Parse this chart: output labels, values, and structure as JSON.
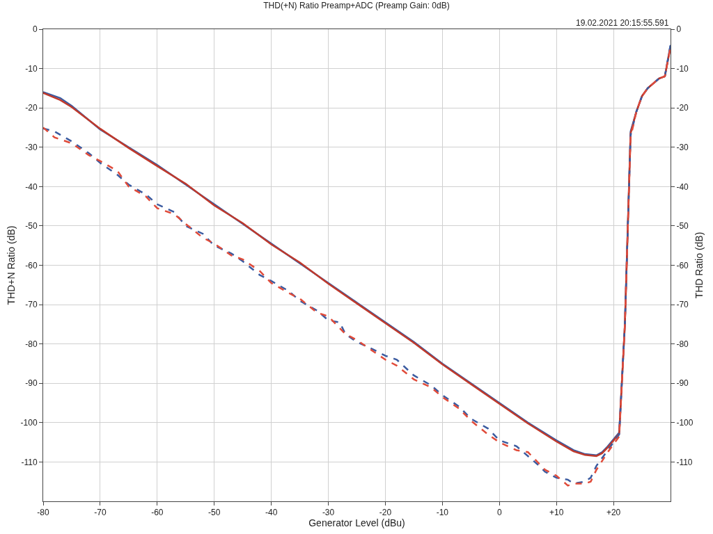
{
  "chart_data": {
    "type": "line",
    "title": "THD(+N) Ratio Preamp+ADC (Preamp Gain: 0dB)",
    "xlabel": "Generator Level (dBu)",
    "ylabel": "THD+N Ratio (dB)",
    "y2label": "THD Ratio (dB)",
    "annotations": [
      "19.02.2021 20:15:55.591"
    ],
    "series": [
      {
        "color": "#3b5ba0",
        "line_style": "solid",
        "x": [
          -80,
          -77,
          -75,
          -70,
          -65,
          -60,
          -55,
          -50,
          -45,
          -40,
          -35,
          -30,
          -25,
          -20,
          -15,
          -10,
          -5,
          0,
          5,
          10,
          13,
          15,
          17,
          18,
          19,
          21,
          22,
          23,
          24,
          25,
          26,
          28,
          29,
          30
        ],
        "values": [
          -16,
          -17.5,
          -19.5,
          -25.5,
          -30,
          -34.5,
          -39.5,
          -44.5,
          -49.5,
          -54.5,
          -59.5,
          -64.5,
          -69.5,
          -74.5,
          -79.5,
          -85,
          -90,
          -95,
          -100,
          -104.5,
          -107,
          -108,
          -108.3,
          -107.5,
          -106,
          -102.5,
          -75,
          -26,
          -21,
          -17,
          -15,
          -12.5,
          -12,
          -4
        ]
      },
      {
        "color": "#c0392b",
        "line_style": "solid",
        "x": [
          -80,
          -77,
          -75,
          -70,
          -65,
          -60,
          -55,
          -50,
          -45,
          -40,
          -35,
          -30,
          -25,
          -20,
          -15,
          -10,
          -5,
          0,
          5,
          10,
          13,
          15,
          17,
          18,
          19,
          21,
          22,
          23,
          24,
          25,
          26,
          28,
          29,
          30
        ],
        "values": [
          -16.2,
          -18,
          -19.8,
          -25.3,
          -30.2,
          -34.8,
          -39.3,
          -44.8,
          -49.3,
          -54.7,
          -59.3,
          -64.7,
          -69.7,
          -74.7,
          -79.7,
          -85.2,
          -90.2,
          -95.2,
          -100.2,
          -104.8,
          -107.3,
          -108.2,
          -108.5,
          -107.8,
          -106.3,
          -102.8,
          -75,
          -26.5,
          -21,
          -17,
          -15,
          -12.5,
          -12,
          -4.5
        ]
      },
      {
        "color": "#3b5ba0",
        "line_style": "dashed",
        "axis": "y2",
        "x": [
          -80,
          -78,
          -75,
          -72,
          -70,
          -67,
          -65,
          -62,
          -60,
          -57,
          -55,
          -52,
          -50,
          -47,
          -45,
          -42,
          -40,
          -37,
          -35,
          -32,
          -30,
          -28,
          -27,
          -25,
          -22,
          -20,
          -18,
          -15,
          -12,
          -10,
          -7,
          -5,
          -2,
          0,
          3,
          5,
          7,
          8,
          10,
          12,
          13,
          15,
          16,
          17,
          19,
          21,
          22,
          23,
          24,
          25,
          26,
          28,
          29,
          30
        ],
        "values": [
          -25.2,
          -26,
          -28.5,
          -31.5,
          -34,
          -37,
          -39.5,
          -42,
          -44.5,
          -46.5,
          -50,
          -52,
          -55,
          -57,
          -59,
          -62.5,
          -64,
          -66.5,
          -69,
          -71.5,
          -74,
          -74.5,
          -77.5,
          -79.5,
          -81.5,
          -83,
          -84,
          -88,
          -90.5,
          -93,
          -96,
          -99,
          -101.5,
          -104.5,
          -106,
          -108.5,
          -111,
          -112.5,
          -114,
          -114.5,
          -115.5,
          -115,
          -114,
          -111,
          -107,
          -103,
          -75,
          -27,
          -21,
          -17,
          -15,
          -12.5,
          -12,
          -4
        ]
      },
      {
        "color": "#e04b3a",
        "line_style": "dashed",
        "axis": "y2",
        "x": [
          -80,
          -78,
          -75,
          -72,
          -70,
          -67,
          -65,
          -62,
          -60,
          -57,
          -55,
          -52,
          -50,
          -47,
          -45,
          -42,
          -40,
          -37,
          -35,
          -32,
          -30,
          -28,
          -27,
          -25,
          -22,
          -20,
          -18,
          -15,
          -12,
          -10,
          -7,
          -5,
          -2,
          0,
          3,
          5,
          7,
          8,
          10,
          12,
          13,
          15,
          16,
          17,
          19,
          21,
          22,
          23,
          24,
          25,
          26,
          28,
          29,
          30
        ],
        "values": [
          -25,
          -27.5,
          -29,
          -32,
          -33.5,
          -36,
          -40,
          -42.5,
          -45.5,
          -47,
          -49.5,
          -53,
          -54.5,
          -57.5,
          -58.5,
          -61.5,
          -64.5,
          -67,
          -68.5,
          -72,
          -73,
          -76,
          -77.5,
          -79,
          -82,
          -84,
          -85.5,
          -89,
          -91,
          -93.5,
          -96.5,
          -99.5,
          -103,
          -105,
          -107,
          -107.5,
          -110.5,
          -112,
          -113.5,
          -116,
          -115.5,
          -115.5,
          -115,
          -112,
          -107.5,
          -103.5,
          -75,
          -27.5,
          -21,
          -17,
          -15,
          -12.5,
          -12,
          -4.5
        ]
      }
    ],
    "xlim": [
      -80,
      30
    ],
    "xticks": [
      -80,
      -70,
      -60,
      -50,
      -40,
      -30,
      -20,
      -10,
      0,
      {
        "value": 10,
        "label": "+10"
      },
      {
        "value": 20,
        "label": "+20"
      }
    ],
    "ylim": [
      -120,
      0
    ],
    "yticks": [
      -110,
      -100,
      -90,
      -80,
      -70,
      -60,
      -50,
      -40,
      -30,
      -20,
      -10,
      0
    ],
    "y2lim": [
      -120,
      0
    ],
    "y2ticks": [
      -110,
      -100,
      -90,
      -80,
      -70,
      -60,
      -50,
      -40,
      -30,
      -20,
      -10,
      0
    ],
    "grid": true
  }
}
